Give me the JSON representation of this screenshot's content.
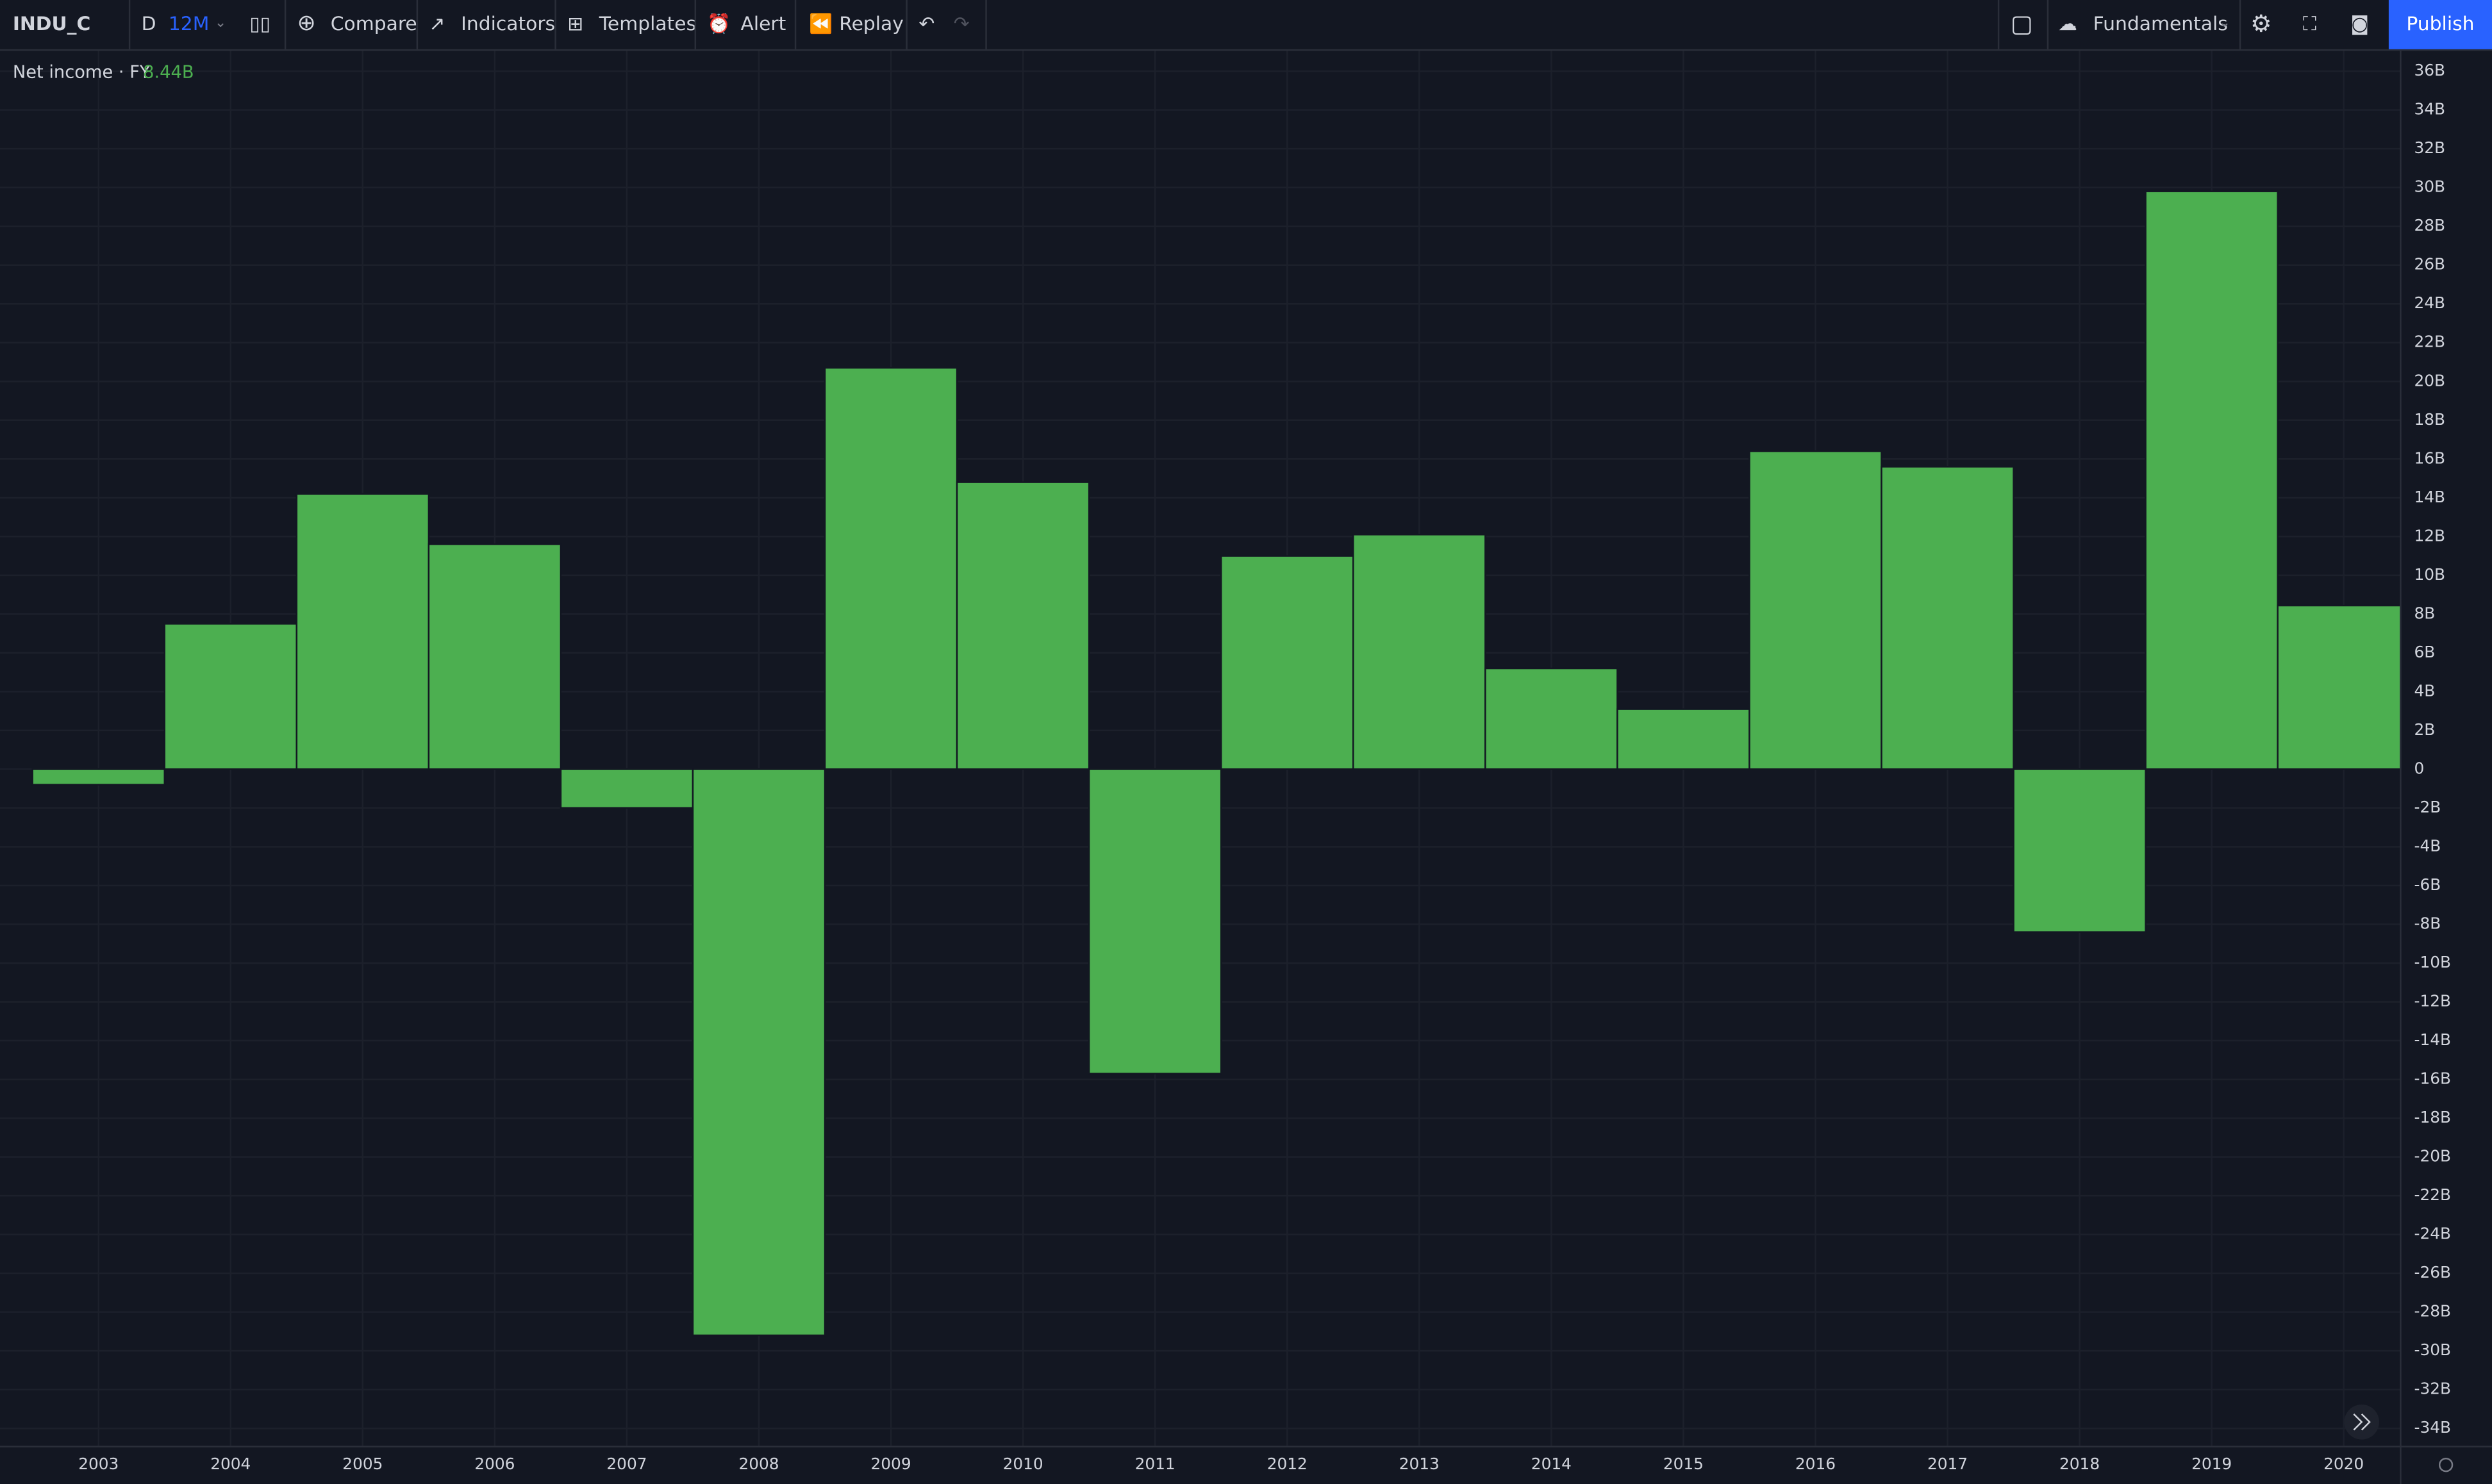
{
  "toolbar": {
    "symbol": "INDU_C",
    "interval": "D",
    "range": "12M",
    "compare": "Compare",
    "indicators": "Indicators",
    "templates": "Templates",
    "alert": "Alert",
    "replay": "Replay",
    "fundamentals": "Fundamentals",
    "publish": "Publish"
  },
  "chart_data": {
    "type": "bar",
    "title": "Net income · FY",
    "legend_value": "8.44B",
    "color": "#4caf50",
    "grid": true,
    "categories": [
      "2003",
      "2004",
      "2005",
      "2006",
      "2007",
      "2008",
      "2009",
      "2010",
      "2011",
      "2012",
      "2013",
      "2014",
      "2015",
      "2016",
      "2017",
      "2018",
      "2019",
      "2020"
    ],
    "values": [
      -0.8,
      7.5,
      14.2,
      11.6,
      -2.0,
      -29.2,
      20.7,
      14.8,
      -15.7,
      11.0,
      12.1,
      5.2,
      3.1,
      16.4,
      15.6,
      -8.4,
      29.8,
      8.44
    ],
    "ylim": [
      -34.9,
      37.05
    ],
    "yticks": [
      {
        "value": 36,
        "label": "36B"
      },
      {
        "value": 34,
        "label": "34B"
      },
      {
        "value": 32,
        "label": "32B"
      },
      {
        "value": 30,
        "label": "30B"
      },
      {
        "value": 28,
        "label": "28B"
      },
      {
        "value": 26,
        "label": "26B"
      },
      {
        "value": 24,
        "label": "24B"
      },
      {
        "value": 22,
        "label": "22B"
      },
      {
        "value": 20,
        "label": "20B"
      },
      {
        "value": 18,
        "label": "18B"
      },
      {
        "value": 16,
        "label": "16B"
      },
      {
        "value": 14,
        "label": "14B"
      },
      {
        "value": 12,
        "label": "12B"
      },
      {
        "value": 10,
        "label": "10B"
      },
      {
        "value": 8,
        "label": "8B"
      },
      {
        "value": 6,
        "label": "6B"
      },
      {
        "value": 4,
        "label": "4B"
      },
      {
        "value": 2,
        "label": "2B"
      },
      0,
      {
        "value": -2,
        "label": "-2B"
      },
      {
        "value": -4,
        "label": "-4B"
      },
      {
        "value": -6,
        "label": "-6B"
      },
      {
        "value": -8,
        "label": "-8B"
      },
      {
        "value": -10,
        "label": "-10B"
      },
      {
        "value": -12,
        "label": "-12B"
      },
      {
        "value": -14,
        "label": "-14B"
      },
      {
        "value": -16,
        "label": "-16B"
      },
      {
        "value": -18,
        "label": "-18B"
      },
      {
        "value": -20,
        "label": "-20B"
      },
      {
        "value": -22,
        "label": "-22B"
      },
      {
        "value": -24,
        "label": "-24B"
      },
      {
        "value": -26,
        "label": "-26B"
      },
      {
        "value": -28,
        "label": "-28B"
      },
      {
        "value": -30,
        "label": "-30B"
      },
      {
        "value": -32,
        "label": "-32B"
      },
      {
        "value": -34,
        "label": "-34B"
      }
    ]
  }
}
